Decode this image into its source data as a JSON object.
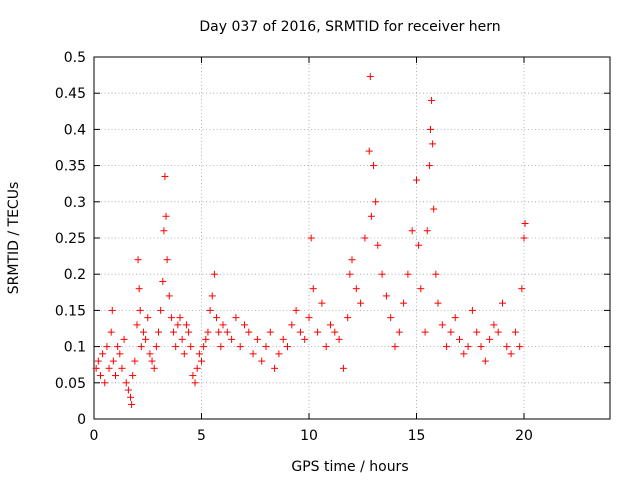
{
  "chart_data": {
    "type": "scatter",
    "title": "Day 037 of 2016, SRMTID for receiver hern",
    "xlabel": "GPS time / hours",
    "ylabel": "SRMTID / TECUs",
    "xlim": [
      0,
      24
    ],
    "ylim": [
      0,
      0.5
    ],
    "xticks": [
      0,
      5,
      10,
      15,
      20
    ],
    "xtick_labels": [
      "0",
      "5",
      "10",
      "15",
      "20"
    ],
    "yticks": [
      0,
      0.05,
      0.1,
      0.15,
      0.2,
      0.25,
      0.3,
      0.35,
      0.4,
      0.45,
      0.5
    ],
    "ytick_labels": [
      "0",
      "0.05",
      "0.1",
      "0.15",
      "0.2",
      "0.25",
      "0.3",
      "0.35",
      "0.4",
      "0.45",
      "0.5"
    ],
    "grid": true,
    "marker": "+",
    "series": [
      {
        "name": "SRMTID",
        "color": "#ff0000",
        "points": [
          [
            0.1,
            0.07
          ],
          [
            0.2,
            0.08
          ],
          [
            0.3,
            0.06
          ],
          [
            0.4,
            0.09
          ],
          [
            0.5,
            0.05
          ],
          [
            0.6,
            0.1
          ],
          [
            0.7,
            0.07
          ],
          [
            0.8,
            0.12
          ],
          [
            0.85,
            0.15
          ],
          [
            0.9,
            0.08
          ],
          [
            1.0,
            0.06
          ],
          [
            1.1,
            0.1
          ],
          [
            1.2,
            0.09
          ],
          [
            1.3,
            0.07
          ],
          [
            1.4,
            0.11
          ],
          [
            1.5,
            0.05
          ],
          [
            1.6,
            0.04
          ],
          [
            1.7,
            0.03
          ],
          [
            1.75,
            0.02
          ],
          [
            1.8,
            0.06
          ],
          [
            1.9,
            0.08
          ],
          [
            2.0,
            0.13
          ],
          [
            2.05,
            0.22
          ],
          [
            2.1,
            0.18
          ],
          [
            2.15,
            0.15
          ],
          [
            2.2,
            0.1
          ],
          [
            2.3,
            0.12
          ],
          [
            2.4,
            0.11
          ],
          [
            2.5,
            0.14
          ],
          [
            2.6,
            0.09
          ],
          [
            2.7,
            0.08
          ],
          [
            2.8,
            0.07
          ],
          [
            2.9,
            0.1
          ],
          [
            3.0,
            0.12
          ],
          [
            3.1,
            0.15
          ],
          [
            3.2,
            0.19
          ],
          [
            3.25,
            0.26
          ],
          [
            3.3,
            0.335
          ],
          [
            3.35,
            0.28
          ],
          [
            3.4,
            0.22
          ],
          [
            3.5,
            0.17
          ],
          [
            3.6,
            0.14
          ],
          [
            3.7,
            0.12
          ],
          [
            3.8,
            0.1
          ],
          [
            3.9,
            0.13
          ],
          [
            4.0,
            0.14
          ],
          [
            4.1,
            0.11
          ],
          [
            4.2,
            0.09
          ],
          [
            4.3,
            0.13
          ],
          [
            4.4,
            0.12
          ],
          [
            4.5,
            0.1
          ],
          [
            4.6,
            0.06
          ],
          [
            4.7,
            0.05
          ],
          [
            4.8,
            0.07
          ],
          [
            4.9,
            0.09
          ],
          [
            5.0,
            0.08
          ],
          [
            5.1,
            0.1
          ],
          [
            5.2,
            0.11
          ],
          [
            5.3,
            0.12
          ],
          [
            5.4,
            0.15
          ],
          [
            5.5,
            0.17
          ],
          [
            5.6,
            0.2
          ],
          [
            5.7,
            0.14
          ],
          [
            5.8,
            0.12
          ],
          [
            5.9,
            0.1
          ],
          [
            6.0,
            0.13
          ],
          [
            6.2,
            0.12
          ],
          [
            6.4,
            0.11
          ],
          [
            6.6,
            0.14
          ],
          [
            6.8,
            0.1
          ],
          [
            7.0,
            0.13
          ],
          [
            7.2,
            0.12
          ],
          [
            7.4,
            0.09
          ],
          [
            7.6,
            0.11
          ],
          [
            7.8,
            0.08
          ],
          [
            8.0,
            0.1
          ],
          [
            8.2,
            0.12
          ],
          [
            8.4,
            0.07
          ],
          [
            8.6,
            0.09
          ],
          [
            8.8,
            0.11
          ],
          [
            9.0,
            0.1
          ],
          [
            9.2,
            0.13
          ],
          [
            9.4,
            0.15
          ],
          [
            9.6,
            0.12
          ],
          [
            9.8,
            0.11
          ],
          [
            10.0,
            0.14
          ],
          [
            10.1,
            0.25
          ],
          [
            10.2,
            0.18
          ],
          [
            10.4,
            0.12
          ],
          [
            10.6,
            0.16
          ],
          [
            10.8,
            0.1
          ],
          [
            11.0,
            0.13
          ],
          [
            11.2,
            0.12
          ],
          [
            11.4,
            0.11
          ],
          [
            11.6,
            0.07
          ],
          [
            11.8,
            0.14
          ],
          [
            11.9,
            0.2
          ],
          [
            12.0,
            0.22
          ],
          [
            12.2,
            0.18
          ],
          [
            12.4,
            0.16
          ],
          [
            12.6,
            0.25
          ],
          [
            12.8,
            0.37
          ],
          [
            12.85,
            0.473
          ],
          [
            12.9,
            0.28
          ],
          [
            13.0,
            0.35
          ],
          [
            13.1,
            0.3
          ],
          [
            13.2,
            0.24
          ],
          [
            13.4,
            0.2
          ],
          [
            13.6,
            0.17
          ],
          [
            13.8,
            0.14
          ],
          [
            14.0,
            0.1
          ],
          [
            14.2,
            0.12
          ],
          [
            14.4,
            0.16
          ],
          [
            14.6,
            0.2
          ],
          [
            14.8,
            0.26
          ],
          [
            15.0,
            0.33
          ],
          [
            15.1,
            0.24
          ],
          [
            15.2,
            0.18
          ],
          [
            15.4,
            0.12
          ],
          [
            15.5,
            0.26
          ],
          [
            15.6,
            0.35
          ],
          [
            15.65,
            0.4
          ],
          [
            15.7,
            0.44
          ],
          [
            15.75,
            0.38
          ],
          [
            15.8,
            0.29
          ],
          [
            15.9,
            0.2
          ],
          [
            16.0,
            0.16
          ],
          [
            16.2,
            0.13
          ],
          [
            16.4,
            0.1
          ],
          [
            16.6,
            0.12
          ],
          [
            16.8,
            0.14
          ],
          [
            17.0,
            0.11
          ],
          [
            17.2,
            0.09
          ],
          [
            17.4,
            0.1
          ],
          [
            17.6,
            0.15
          ],
          [
            17.8,
            0.12
          ],
          [
            18.0,
            0.1
          ],
          [
            18.2,
            0.08
          ],
          [
            18.4,
            0.11
          ],
          [
            18.6,
            0.13
          ],
          [
            18.8,
            0.12
          ],
          [
            19.0,
            0.16
          ],
          [
            19.2,
            0.1
          ],
          [
            19.4,
            0.09
          ],
          [
            19.6,
            0.12
          ],
          [
            19.8,
            0.1
          ],
          [
            19.9,
            0.18
          ],
          [
            20.0,
            0.25
          ],
          [
            20.05,
            0.27
          ]
        ]
      }
    ]
  }
}
